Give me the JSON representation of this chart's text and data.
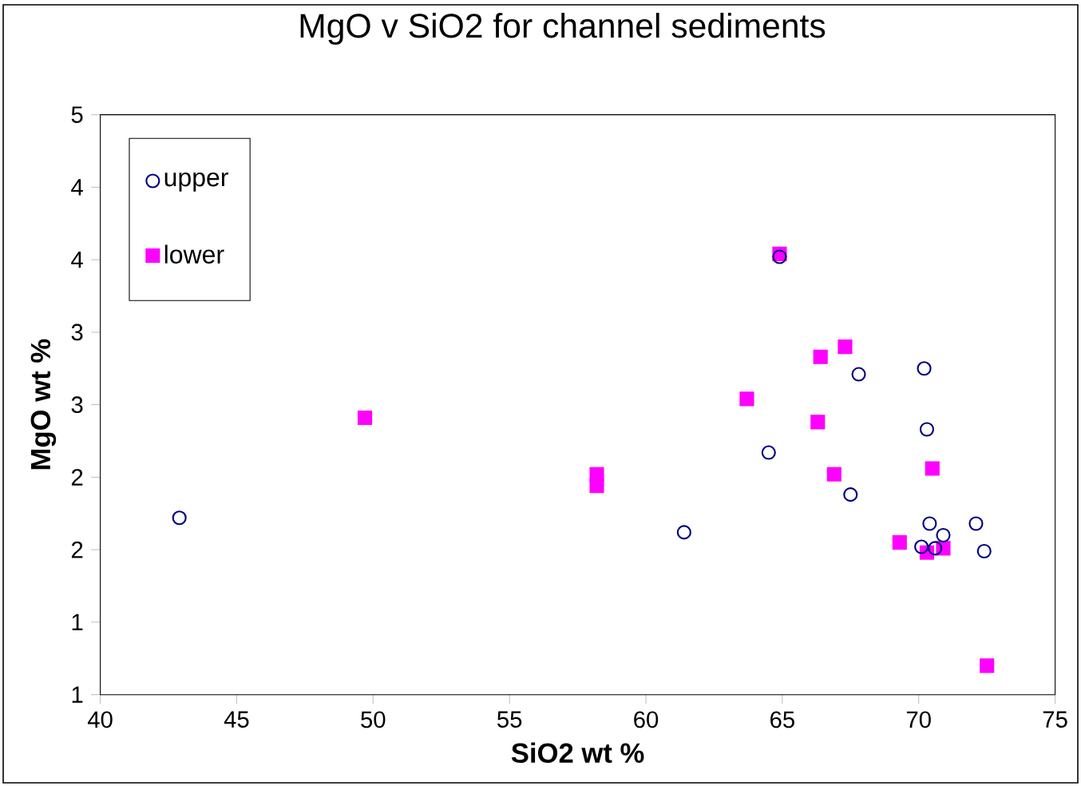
{
  "chart_data": {
    "type": "scatter",
    "title": "MgO v SiO2 for channel sediments",
    "xlabel": "SiO2 wt %",
    "ylabel": "MgO wt %",
    "xlim": [
      40,
      75
    ],
    "xticks": [
      40,
      45,
      50,
      55,
      60,
      65,
      70,
      75
    ],
    "ylim": [
      1,
      5
    ],
    "yticks": [
      {
        "value": 1,
        "label": "1"
      },
      {
        "value": 1.5,
        "label": "1"
      },
      {
        "value": 2,
        "label": "2"
      },
      {
        "value": 2.5,
        "label": "2"
      },
      {
        "value": 3,
        "label": "3"
      },
      {
        "value": 3.5,
        "label": "3"
      },
      {
        "value": 4,
        "label": "4"
      },
      {
        "value": 4.5,
        "label": "4"
      },
      {
        "value": 5,
        "label": "5"
      }
    ],
    "legend": "top left",
    "grid": false,
    "series": [
      {
        "name": "upper",
        "color": "#000080",
        "marker": "circle",
        "x": [
          42.9,
          61.4,
          64.5,
          64.9,
          67.5,
          67.8,
          70.2,
          70.3,
          70.4,
          70.1,
          70.6,
          70.9,
          72.1,
          72.4
        ],
        "values": [
          2.22,
          2.12,
          2.67,
          4.02,
          2.38,
          3.21,
          3.25,
          2.83,
          2.18,
          2.02,
          2.01,
          2.1,
          2.18,
          1.99
        ]
      },
      {
        "name": "lower",
        "color": "#ff00ff",
        "marker": "square",
        "x": [
          49.7,
          58.2,
          58.2,
          63.7,
          64.9,
          66.4,
          66.3,
          66.9,
          67.3,
          69.3,
          70.3,
          70.5,
          70.9,
          72.5
        ],
        "values": [
          2.91,
          2.52,
          2.44,
          3.04,
          4.04,
          3.33,
          2.88,
          2.52,
          3.4,
          2.05,
          1.98,
          2.56,
          2.01,
          1.2
        ]
      }
    ]
  }
}
